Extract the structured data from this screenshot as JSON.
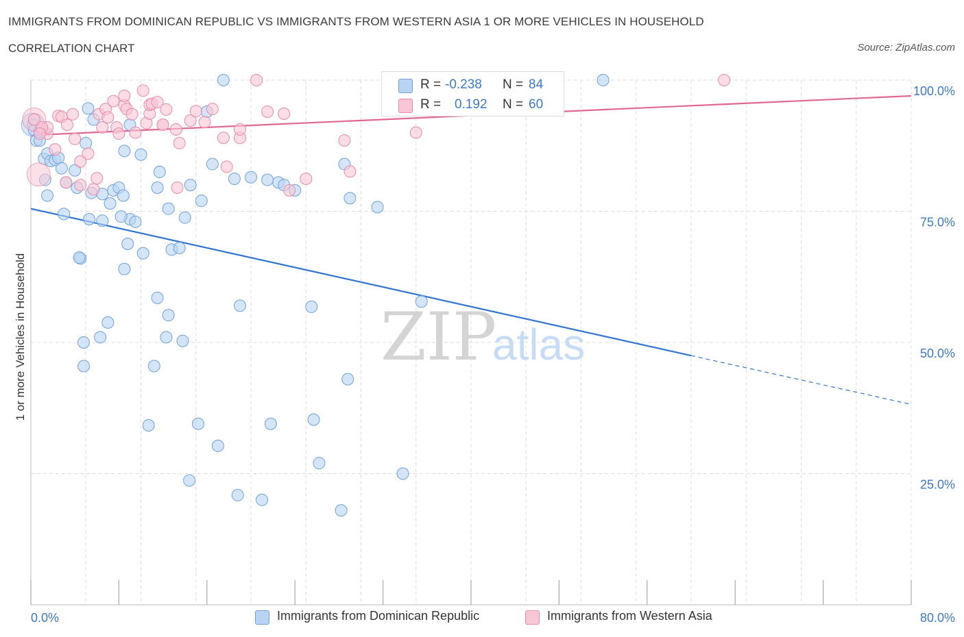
{
  "header": {
    "title": "IMMIGRANTS FROM DOMINICAN REPUBLIC VS IMMIGRANTS FROM WESTERN ASIA 1 OR MORE VEHICLES IN HOUSEHOLD",
    "subtitle": "CORRELATION CHART",
    "source": "Source: ZipAtlas.com"
  },
  "watermark": {
    "zip": "ZIP",
    "atlas": "atlas"
  },
  "legend": {
    "rows": [
      {
        "r_label": "R =",
        "r_value": "-0.238",
        "n_label": "N =",
        "n_value": "84"
      },
      {
        "r_label": "R =",
        "r_value": "0.192",
        "n_label": "N =",
        "n_value": "60"
      }
    ]
  },
  "bottom_legend": {
    "series1": "Immigrants from Dominican Republic",
    "series2": "Immigrants from Western Asia"
  },
  "colors": {
    "blue_fill": "#b9d3f3",
    "blue_stroke": "#6fa0dc",
    "blue_line": "#2f74d0",
    "pink_fill": "#f8c6d5",
    "pink_stroke": "#e88aa8",
    "pink_line": "#e06890",
    "tick_label": "#3b78c9",
    "grid": "#dddddd"
  },
  "chart_data": {
    "type": "scatter",
    "ylabel": "1 or more Vehicles in Household",
    "xlim": [
      0,
      80
    ],
    "ylim": [
      0,
      100
    ],
    "x_tick_labels": [
      "0.0%",
      "80.0%"
    ],
    "y_ticks": [
      {
        "value": 25,
        "label": "25.0%"
      },
      {
        "value": 50,
        "label": "50.0%"
      },
      {
        "value": 75,
        "label": "75.0%"
      },
      {
        "value": 100,
        "label": "100.0%"
      }
    ],
    "series": [
      {
        "name": "Immigrants from Dominican Republic",
        "color": "blue",
        "trend": {
          "x0": 0,
          "y0": 75.5,
          "x1": 60,
          "y1": 47.5,
          "dash_to_x": 80,
          "dash_to_y": 38.2
        },
        "points": [
          [
            0.2,
            91.5
          ],
          [
            0.3,
            90.5
          ],
          [
            0.5,
            88.5
          ],
          [
            0.8,
            88.5
          ],
          [
            0.8,
            90.2
          ],
          [
            1.2,
            85.0
          ],
          [
            1.5,
            86.0
          ],
          [
            1.8,
            84.6
          ],
          [
            2.2,
            84.8
          ],
          [
            2.5,
            85.2
          ],
          [
            1.3,
            81.0
          ],
          [
            2.8,
            83.2
          ],
          [
            3.2,
            80.5
          ],
          [
            4.2,
            79.5
          ],
          [
            4.0,
            82.8
          ],
          [
            5.2,
            94.6
          ],
          [
            5.7,
            92.5
          ],
          [
            5.0,
            88.0
          ],
          [
            5.5,
            78.5
          ],
          [
            6.5,
            78.3
          ],
          [
            7.2,
            76.5
          ],
          [
            7.5,
            79.0
          ],
          [
            8.0,
            79.5
          ],
          [
            8.5,
            86.5
          ],
          [
            9.0,
            91.5
          ],
          [
            9.0,
            73.5
          ],
          [
            10.0,
            85.8
          ],
          [
            11.5,
            79.5
          ],
          [
            11.7,
            82.5
          ],
          [
            14.5,
            80.0
          ],
          [
            15.5,
            77.0
          ],
          [
            16.0,
            94.0
          ],
          [
            16.5,
            84.0
          ],
          [
            18.5,
            81.2
          ],
          [
            20.0,
            81.5
          ],
          [
            21.5,
            81.0
          ],
          [
            22.5,
            80.5
          ],
          [
            23.0,
            80.0
          ],
          [
            24.0,
            79.0
          ],
          [
            28.5,
            84.0
          ],
          [
            29.0,
            77.5
          ],
          [
            31.5,
            75.8
          ],
          [
            1.5,
            78.0
          ],
          [
            3.0,
            74.5
          ],
          [
            5.3,
            73.5
          ],
          [
            6.5,
            73.2
          ],
          [
            8.2,
            74.0
          ],
          [
            9.5,
            73.0
          ],
          [
            12.5,
            75.5
          ],
          [
            12.8,
            67.7
          ],
          [
            14.0,
            73.8
          ],
          [
            8.8,
            68.8
          ],
          [
            10.2,
            67.0
          ],
          [
            4.5,
            66.0
          ],
          [
            4.4,
            66.2
          ],
          [
            8.5,
            64.0
          ],
          [
            13.5,
            68.0
          ],
          [
            11.5,
            58.5
          ],
          [
            12.5,
            55.2
          ],
          [
            7.0,
            53.8
          ],
          [
            6.3,
            51.0
          ],
          [
            4.8,
            50.0
          ],
          [
            12.3,
            51.0
          ],
          [
            13.8,
            50.3
          ],
          [
            4.8,
            45.5
          ],
          [
            11.2,
            45.5
          ],
          [
            19.0,
            57.0
          ],
          [
            25.5,
            56.8
          ],
          [
            35.5,
            57.8
          ],
          [
            28.8,
            43.0
          ],
          [
            10.7,
            34.2
          ],
          [
            15.2,
            34.5
          ],
          [
            21.8,
            34.5
          ],
          [
            25.7,
            35.3
          ],
          [
            17.0,
            30.3
          ],
          [
            26.2,
            27.0
          ],
          [
            14.4,
            23.7
          ],
          [
            18.8,
            20.9
          ],
          [
            21.0,
            20.0
          ],
          [
            28.2,
            18.0
          ],
          [
            33.8,
            25.0
          ],
          [
            17.5,
            100.0
          ],
          [
            52.0,
            100.0
          ],
          [
            8.4,
            78.0
          ]
        ],
        "big_points": [
          [
            0.2,
            91.5
          ]
        ]
      },
      {
        "name": "Immigrants from Western Asia",
        "color": "pink",
        "trend": {
          "x0": 0,
          "y0": 89.5,
          "x1": 80,
          "y1": 97.0
        },
        "points": [
          [
            0.3,
            92.5
          ],
          [
            1.0,
            90.6
          ],
          [
            1.5,
            89.8
          ],
          [
            1.5,
            91.0
          ],
          [
            2.5,
            93.2
          ],
          [
            2.8,
            93.0
          ],
          [
            3.3,
            91.5
          ],
          [
            3.8,
            93.5
          ],
          [
            4.0,
            88.8
          ],
          [
            4.5,
            84.5
          ],
          [
            4.5,
            80.0
          ],
          [
            3.2,
            80.5
          ],
          [
            5.2,
            86.0
          ],
          [
            5.7,
            79.2
          ],
          [
            6.0,
            81.3
          ],
          [
            6.2,
            93.5
          ],
          [
            6.5,
            91.0
          ],
          [
            6.8,
            94.5
          ],
          [
            7.0,
            92.9
          ],
          [
            7.5,
            96.0
          ],
          [
            7.8,
            91.0
          ],
          [
            8.0,
            89.8
          ],
          [
            8.5,
            95.2
          ],
          [
            8.5,
            97.0
          ],
          [
            8.7,
            94.5
          ],
          [
            9.2,
            93.5
          ],
          [
            9.5,
            90.0
          ],
          [
            10.2,
            98.0
          ],
          [
            10.5,
            91.8
          ],
          [
            10.8,
            93.6
          ],
          [
            10.8,
            95.3
          ],
          [
            11.0,
            95.5
          ],
          [
            11.5,
            95.8
          ],
          [
            12.0,
            91.5
          ],
          [
            12.0,
            91.5
          ],
          [
            12.3,
            94.4
          ],
          [
            13.2,
            90.6
          ],
          [
            13.5,
            88.0
          ],
          [
            13.3,
            79.5
          ],
          [
            14.5,
            92.3
          ],
          [
            15.0,
            94.1
          ],
          [
            15.8,
            92.0
          ],
          [
            16.5,
            94.5
          ],
          [
            17.5,
            89.0
          ],
          [
            17.8,
            83.5
          ],
          [
            19.0,
            89.0
          ],
          [
            19.0,
            90.6
          ],
          [
            21.5,
            94.0
          ],
          [
            23.0,
            93.6
          ],
          [
            23.5,
            79.0
          ],
          [
            25.0,
            81.2
          ],
          [
            28.5,
            88.5
          ],
          [
            29.0,
            82.6
          ],
          [
            35.0,
            90.0
          ],
          [
            20.5,
            100.0
          ],
          [
            42.5,
            100.0
          ],
          [
            63.0,
            100.0
          ],
          [
            1.0,
            91.0
          ],
          [
            0.8,
            89.8
          ],
          [
            2.2,
            86.8
          ]
        ],
        "big_points": [
          [
            0.3,
            92.5
          ],
          [
            0.7,
            82.0
          ]
        ]
      }
    ]
  }
}
